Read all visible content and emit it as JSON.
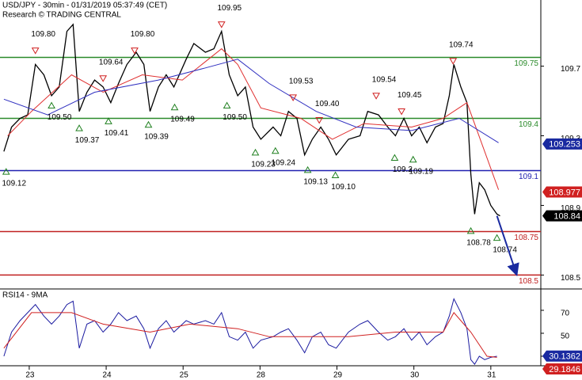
{
  "chart_data": [
    {
      "type": "line",
      "title": "USD/JPY - 30min - 01/31/2019 05:37:49 (CET)",
      "subtitle": "Research © TRADING CENTRAL",
      "xlim": [
        -0.38,
        6.65
      ],
      "xticks": [
        {
          "value": 0,
          "label": "23"
        },
        {
          "value": 1,
          "label": "24"
        },
        {
          "value": 2,
          "label": "25"
        },
        {
          "value": 3,
          "label": "28"
        },
        {
          "value": 4,
          "label": "29"
        },
        {
          "value": 5,
          "label": "30"
        },
        {
          "value": 6,
          "label": "31"
        }
      ],
      "ylim": [
        108.42,
        110.08
      ],
      "yticks": [
        109.7,
        109.3,
        108.9,
        108.5
      ],
      "series": [
        {
          "color": "#000000",
          "x": [
            -0.33,
            -0.23,
            -0.12,
            -0.02,
            0.08,
            0.19,
            0.29,
            0.39,
            0.49,
            0.57,
            0.65,
            0.75,
            0.85,
            0.96,
            1.06,
            1.16,
            1.27,
            1.39,
            1.49,
            1.57,
            1.68,
            1.78,
            1.88,
            2.04,
            2.14,
            2.29,
            2.4,
            2.5,
            2.6,
            2.71,
            2.81,
            2.91,
            3.01,
            3.17,
            3.27,
            3.37,
            3.48,
            3.58,
            3.68,
            3.79,
            3.89,
            3.99,
            4.15,
            4.3,
            4.4,
            4.54,
            4.66,
            4.76,
            4.87,
            4.97,
            5.07,
            5.17,
            5.28,
            5.38,
            5.46,
            5.52,
            5.61,
            5.69,
            5.74,
            5.79,
            5.85,
            5.92,
            6.0,
            6.08,
            6.12
          ],
          "values": [
            109.21,
            109.35,
            109.4,
            109.42,
            109.71,
            109.65,
            109.53,
            109.58,
            109.9,
            109.94,
            109.44,
            109.55,
            109.62,
            109.58,
            109.49,
            109.6,
            109.71,
            109.78,
            109.71,
            109.44,
            109.58,
            109.65,
            109.58,
            109.74,
            109.83,
            109.78,
            109.8,
            109.9,
            109.65,
            109.53,
            109.58,
            109.35,
            109.28,
            109.35,
            109.3,
            109.44,
            109.4,
            109.19,
            109.28,
            109.35,
            109.28,
            109.19,
            109.28,
            109.3,
            109.44,
            109.42,
            109.35,
            109.3,
            109.4,
            109.3,
            109.35,
            109.26,
            109.35,
            109.37,
            109.53,
            109.71,
            109.58,
            109.49,
            109.08,
            108.85,
            109.03,
            108.99,
            108.9,
            108.85,
            108.84
          ]
        },
        {
          "color": "#e03030",
          "x": [
            -0.28,
            0.03,
            0.55,
            0.96,
            1.47,
            1.99,
            2.5,
            2.71,
            3.01,
            3.53,
            3.94,
            4.35,
            4.97,
            5.38,
            5.69,
            6.1
          ],
          "values": [
            109.3,
            109.44,
            109.65,
            109.55,
            109.65,
            109.62,
            109.8,
            109.71,
            109.46,
            109.4,
            109.28,
            109.37,
            109.35,
            109.4,
            109.49,
            108.99
          ]
        },
        {
          "color": "#3030c0",
          "x": [
            -0.33,
            0.24,
            0.85,
            1.68,
            2.29,
            2.71,
            3.12,
            3.73,
            4.25,
            4.97,
            5.59,
            6.1
          ],
          "values": [
            109.51,
            109.42,
            109.55,
            109.62,
            109.69,
            109.74,
            109.6,
            109.44,
            109.35,
            109.33,
            109.4,
            109.26
          ]
        }
      ],
      "levels": [
        {
          "value": 109.75,
          "color": "#2a8a2a"
        },
        {
          "value": 109.4,
          "color": "#2a8a2a"
        },
        {
          "value": 109.1,
          "color": "#2020b0"
        },
        {
          "value": 108.75,
          "color": "#c02020"
        },
        {
          "value": 108.5,
          "color": "#c02020"
        }
      ],
      "annotations": [
        {
          "x": 0.08,
          "value": 109.8,
          "label": "109.80",
          "marker": "down"
        },
        {
          "x": 0.96,
          "value": 109.64,
          "label": "109.64",
          "marker": "down"
        },
        {
          "x": 1.37,
          "value": 109.8,
          "label": "109.80",
          "marker": "down"
        },
        {
          "x": 2.5,
          "value": 109.95,
          "label": "109.95",
          "marker": "down"
        },
        {
          "x": 3.43,
          "value": 109.53,
          "label": "109.53",
          "marker": "down"
        },
        {
          "x": 3.77,
          "value": 109.4,
          "label": "109.40",
          "marker": "down"
        },
        {
          "x": 4.51,
          "value": 109.54,
          "label": "109.54",
          "marker": "down"
        },
        {
          "x": 4.84,
          "value": 109.45,
          "label": "109.45",
          "marker": "down"
        },
        {
          "x": 5.51,
          "value": 109.74,
          "label": "109.74",
          "marker": "down"
        },
        {
          "x": -0.3,
          "value": 109.12,
          "label": "109.12",
          "marker": "up"
        },
        {
          "x": 0.29,
          "value": 109.5,
          "label": "109.50",
          "marker": "up"
        },
        {
          "x": 0.65,
          "value": 109.37,
          "label": "109.37",
          "marker": "up"
        },
        {
          "x": 1.03,
          "value": 109.41,
          "label": "109.41",
          "marker": "up"
        },
        {
          "x": 1.55,
          "value": 109.39,
          "label": "109.39",
          "marker": "up"
        },
        {
          "x": 1.89,
          "value": 109.49,
          "label": "109.49",
          "marker": "up"
        },
        {
          "x": 2.57,
          "value": 109.5,
          "label": "109.50",
          "marker": "up"
        },
        {
          "x": 2.94,
          "value": 109.23,
          "label": "109.23",
          "marker": "up"
        },
        {
          "x": 3.2,
          "value": 109.24,
          "label": "109.24",
          "marker": "up"
        },
        {
          "x": 3.62,
          "value": 109.13,
          "label": "109.13",
          "marker": "up"
        },
        {
          "x": 3.98,
          "value": 109.1,
          "label": "109.10",
          "marker": "up"
        },
        {
          "x": 4.75,
          "value": 109.2,
          "label": "109.2",
          "marker": "up"
        },
        {
          "x": 4.99,
          "value": 109.19,
          "label": "109.19",
          "marker": "up"
        },
        {
          "x": 5.74,
          "value": 108.78,
          "label": "108.78",
          "marker": "up"
        },
        {
          "x": 6.08,
          "value": 108.74,
          "label": "108.74",
          "marker": "up"
        }
      ],
      "forecast_arrow": {
        "x": [
          6.08,
          6.33
        ],
        "y": [
          108.84,
          108.51
        ],
        "color": "#1a2aa0"
      },
      "price_tags": [
        {
          "value": 109.253,
          "color": "#1a2aa0"
        },
        {
          "value": 108.977,
          "color": "#d02020"
        },
        {
          "value": 108.84,
          "color": "#000000"
        }
      ]
    },
    {
      "type": "line",
      "title": "RSI14 - 9MA",
      "xlim": [
        -0.38,
        6.65
      ],
      "ylim": [
        21.7,
        88.6
      ],
      "yticks": [
        70,
        50,
        30
      ],
      "series": [
        {
          "color": "#1a1aa0",
          "x": [
            -0.33,
            -0.23,
            -0.12,
            -0.02,
            0.08,
            0.19,
            0.29,
            0.39,
            0.49,
            0.57,
            0.65,
            0.75,
            0.85,
            0.96,
            1.06,
            1.16,
            1.27,
            1.39,
            1.49,
            1.57,
            1.68,
            1.78,
            1.88,
            2.04,
            2.14,
            2.29,
            2.4,
            2.5,
            2.6,
            2.71,
            2.81,
            2.91,
            3.01,
            3.17,
            3.27,
            3.37,
            3.48,
            3.58,
            3.68,
            3.79,
            3.89,
            3.99,
            4.15,
            4.3,
            4.4,
            4.54,
            4.66,
            4.76,
            4.87,
            4.97,
            5.07,
            5.17,
            5.28,
            5.38,
            5.46,
            5.52,
            5.61,
            5.69,
            5.74,
            5.79,
            5.85,
            5.92,
            6.0,
            6.08
          ],
          "values": [
            30,
            51,
            61,
            68,
            75,
            65,
            58,
            65,
            75,
            78,
            37,
            58,
            61,
            51,
            58,
            68,
            61,
            65,
            54,
            37,
            54,
            61,
            51,
            61,
            58,
            61,
            58,
            68,
            47,
            44,
            51,
            37,
            44,
            47,
            51,
            54,
            44,
            33,
            47,
            51,
            40,
            37,
            51,
            58,
            61,
            51,
            44,
            47,
            54,
            44,
            51,
            40,
            47,
            51,
            65,
            80,
            68,
            54,
            27,
            23,
            30,
            27,
            29,
            30
          ]
        },
        {
          "color": "#d02020",
          "x": [
            -0.33,
            0.03,
            0.55,
            0.96,
            1.57,
            2.09,
            2.71,
            3.12,
            3.73,
            4.15,
            4.76,
            5.38,
            5.52,
            5.74,
            5.95,
            6.08
          ],
          "values": [
            37,
            68,
            68,
            58,
            51,
            58,
            54,
            47,
            47,
            47,
            51,
            51,
            68,
            51,
            30,
            29
          ]
        }
      ],
      "price_tags": [
        {
          "value": 30.1362,
          "color": "#1a2aa0"
        },
        {
          "value": 29.1846,
          "color": "#d02020"
        }
      ]
    }
  ]
}
